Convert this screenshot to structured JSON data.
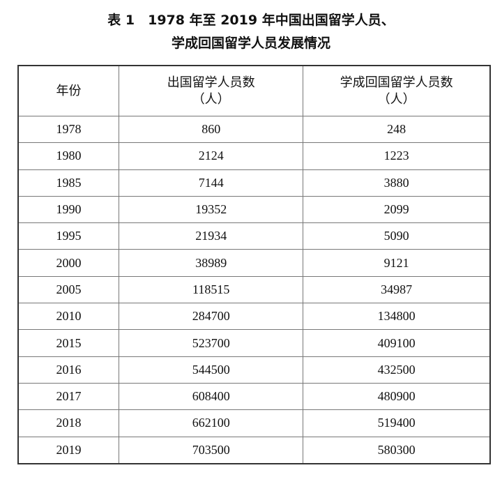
{
  "title": {
    "line1": "表 1　1978 年至 2019 年中国出国留学人员、",
    "line2": "学成回国留学人员发展情况"
  },
  "table": {
    "headers": [
      {
        "label": "年份",
        "unit": ""
      },
      {
        "label": "出国留学人员数",
        "unit": "（人）"
      },
      {
        "label": "学成回国留学人员数",
        "unit": "（人）"
      }
    ],
    "rows": [
      [
        "1978",
        "860",
        "248"
      ],
      [
        "1980",
        "2124",
        "1223"
      ],
      [
        "1985",
        "7144",
        "3880"
      ],
      [
        "1990",
        "19352",
        "2099"
      ],
      [
        "1995",
        "21934",
        "5090"
      ],
      [
        "2000",
        "38989",
        "9121"
      ],
      [
        "2005",
        "118515",
        "34987"
      ],
      [
        "2010",
        "284700",
        "134800"
      ],
      [
        "2015",
        "523700",
        "409100"
      ],
      [
        "2016",
        "544500",
        "432500"
      ],
      [
        "2017",
        "608400",
        "480900"
      ],
      [
        "2018",
        "662100",
        "519400"
      ],
      [
        "2019",
        "703500",
        "580300"
      ]
    ]
  }
}
